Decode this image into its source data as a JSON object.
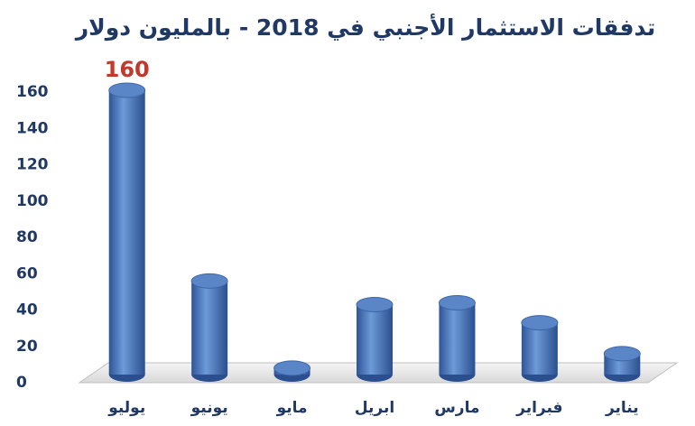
{
  "chart_data": {
    "type": "bar",
    "title": "تدفقات الاستثمار الأجنبي في 2018 - بالمليون دولار",
    "categories": [
      "يوليو",
      "يونيو",
      "مايو",
      "ابريل",
      "مارس",
      "فبراير",
      "يناير"
    ],
    "values": [
      160,
      55,
      7,
      42,
      43,
      32,
      15
    ],
    "value_labels": [
      "160",
      null,
      null,
      null,
      null,
      null,
      null
    ],
    "color": "#4f7fc4",
    "ylim": [
      0,
      160
    ],
    "yticks": [
      0,
      20,
      40,
      60,
      80,
      100,
      120,
      140,
      160
    ],
    "grid": false
  }
}
